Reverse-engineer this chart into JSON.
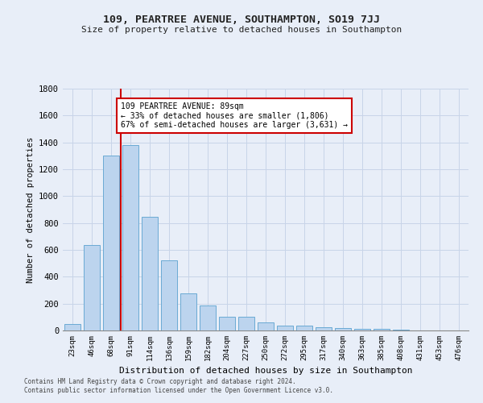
{
  "title1": "109, PEARTREE AVENUE, SOUTHAMPTON, SO19 7JJ",
  "title2": "Size of property relative to detached houses in Southampton",
  "xlabel": "Distribution of detached houses by size in Southampton",
  "ylabel": "Number of detached properties",
  "bin_labels": [
    "23sqm",
    "46sqm",
    "68sqm",
    "91sqm",
    "114sqm",
    "136sqm",
    "159sqm",
    "182sqm",
    "204sqm",
    "227sqm",
    "250sqm",
    "272sqm",
    "295sqm",
    "317sqm",
    "340sqm",
    "363sqm",
    "385sqm",
    "408sqm",
    "431sqm",
    "453sqm",
    "476sqm"
  ],
  "bar_values": [
    50,
    635,
    1305,
    1380,
    845,
    525,
    275,
    185,
    100,
    100,
    60,
    35,
    35,
    25,
    20,
    10,
    12,
    5,
    0,
    0,
    0
  ],
  "bar_color": "#bcd4ee",
  "bar_edge_color": "#6aaad4",
  "grid_color": "#c8d4e8",
  "background_color": "#e8eef8",
  "plot_bg_color": "#e8eef8",
  "vline_color": "#cc0000",
  "vline_x_index": 3,
  "annotation_text": "109 PEARTREE AVENUE: 89sqm\n← 33% of detached houses are smaller (1,806)\n67% of semi-detached houses are larger (3,631) →",
  "annotation_box_color": "#ffffff",
  "annotation_box_edge": "#cc0000",
  "ylim": [
    0,
    1800
  ],
  "yticks": [
    0,
    200,
    400,
    600,
    800,
    1000,
    1200,
    1400,
    1600,
    1800
  ],
  "footer1": "Contains HM Land Registry data © Crown copyright and database right 2024.",
  "footer2": "Contains public sector information licensed under the Open Government Licence v3.0."
}
